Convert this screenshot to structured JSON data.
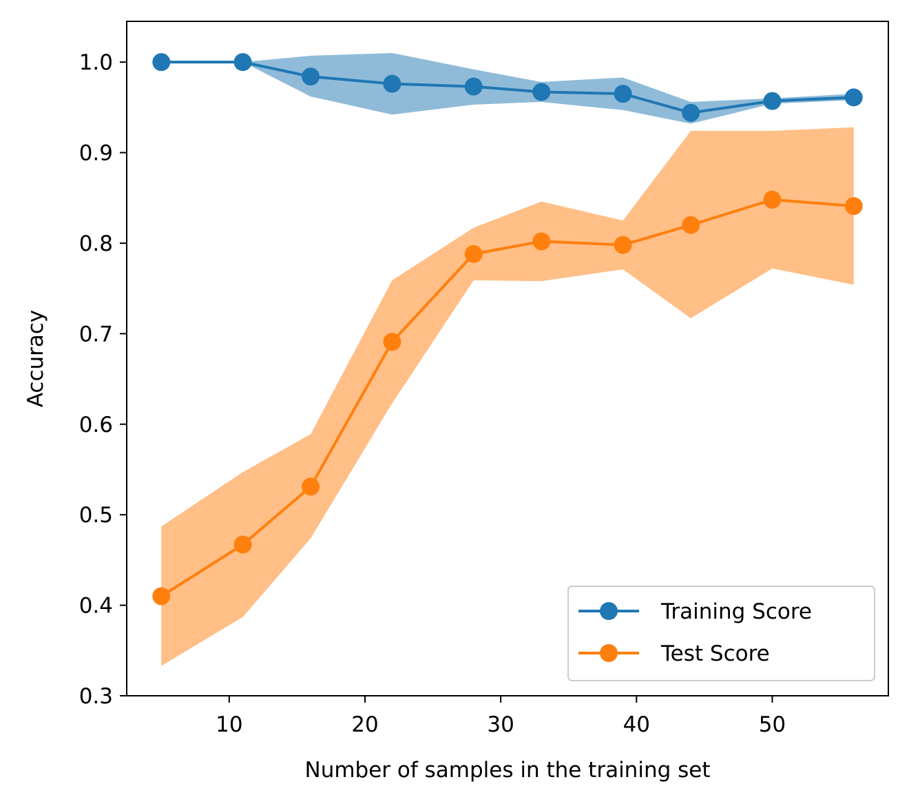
{
  "chart_data": {
    "type": "line",
    "xlabel": "Number of samples in the training set",
    "ylabel": "Accuracy",
    "xlim": [
      2.45,
      58.55
    ],
    "ylim": [
      0.3,
      1.045
    ],
    "xticks": [
      10,
      20,
      30,
      40,
      50
    ],
    "yticks": [
      0.3,
      0.4,
      0.5,
      0.6,
      0.7,
      0.8,
      0.9,
      1.0
    ],
    "x": [
      5,
      11,
      16,
      22,
      28,
      33,
      39,
      44,
      50,
      56
    ],
    "grid": false,
    "legend_position": "lower-right",
    "series": [
      {
        "name": "Training Score",
        "color": "#1f77b4",
        "values": [
          1.0,
          1.0,
          0.984,
          0.976,
          0.973,
          0.967,
          0.965,
          0.944,
          0.957,
          0.961
        ],
        "band_lower": [
          1.0,
          1.0,
          0.962,
          0.942,
          0.953,
          0.956,
          0.947,
          0.932,
          0.954,
          0.958
        ],
        "band_upper": [
          1.0,
          1.0,
          1.007,
          1.01,
          0.992,
          0.978,
          0.983,
          0.956,
          0.96,
          0.965
        ]
      },
      {
        "name": "Test Score",
        "color": "#ff7f0e",
        "values": [
          0.41,
          0.467,
          0.531,
          0.691,
          0.788,
          0.802,
          0.798,
          0.82,
          0.848,
          0.841
        ],
        "band_lower": [
          0.333,
          0.387,
          0.474,
          0.623,
          0.759,
          0.758,
          0.771,
          0.717,
          0.772,
          0.754
        ],
        "band_upper": [
          0.487,
          0.547,
          0.589,
          0.759,
          0.817,
          0.846,
          0.825,
          0.924,
          0.924,
          0.928
        ]
      }
    ]
  }
}
